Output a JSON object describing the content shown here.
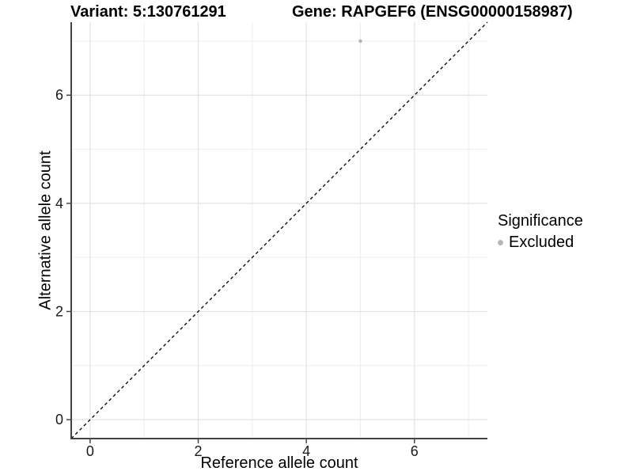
{
  "header": {
    "variant_title": "Variant: 5:130761291",
    "gene_title": "Gene: RAPGEF6 (ENSG00000158987)"
  },
  "legend": {
    "title": "Significance",
    "items": [
      {
        "label": "Excluded",
        "color": "#b5b5b5"
      }
    ]
  },
  "colors": {
    "point": "#b5b5b5",
    "grid_major": "#e3e3e3",
    "grid_minor": "#eeeeee",
    "axis_line": "#444444",
    "tick_mark": "#444444",
    "tick_label": "#1a1a1a",
    "reference_line": "#000000",
    "background": "#ffffff"
  },
  "chart_data": {
    "type": "scatter",
    "title": "Variant: 5:130761291  /  Gene: RAPGEF6 (ENSG00000158987)",
    "xlabel": "Reference allele count",
    "ylabel": "Alternative allele count",
    "xlim": [
      -0.35,
      7.35
    ],
    "ylim": [
      -0.35,
      7.35
    ],
    "x_ticks": [
      0,
      2,
      4,
      6
    ],
    "x_minor_ticks": [
      1,
      3,
      5,
      7
    ],
    "y_ticks": [
      0,
      2,
      4,
      6
    ],
    "y_minor_ticks": [
      1,
      3,
      5,
      7
    ],
    "grid": true,
    "legend_position": "right",
    "series": [
      {
        "name": "Excluded",
        "color": "#b5b5b5",
        "points": [
          {
            "x": 5,
            "y": 7
          }
        ]
      }
    ],
    "reference_line": {
      "slope": 1,
      "intercept": 0,
      "style": "dashed"
    }
  }
}
